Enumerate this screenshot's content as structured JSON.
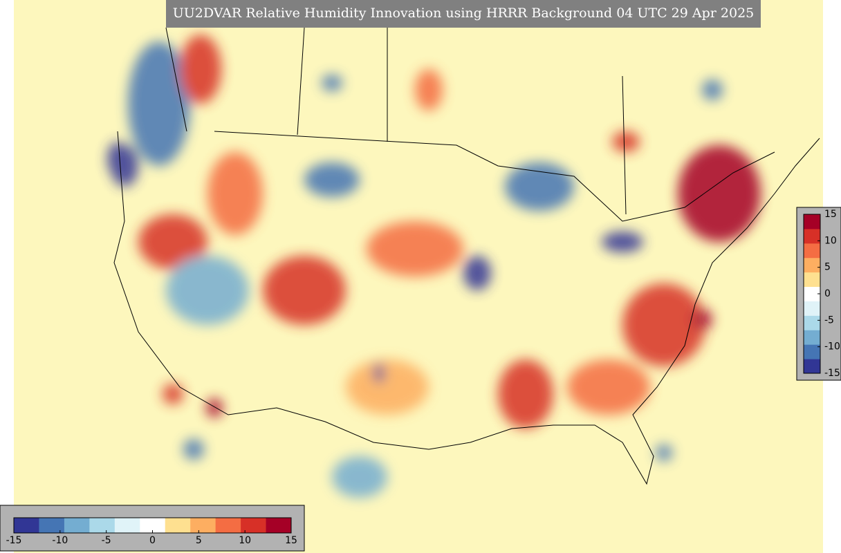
{
  "title": "UU2DVAR Relative Humidity Innovation using HRRR Background 04 UTC 29 Apr 2025",
  "colorbar_horizontal": {
    "range": [
      -15,
      15
    ],
    "ticks": [
      -15,
      -10,
      -5,
      0,
      5,
      10,
      15
    ]
  },
  "colorbar_vertical": {
    "range": [
      -15,
      15
    ],
    "ticks": [
      15,
      10,
      5,
      0,
      -5,
      -10,
      -15
    ]
  },
  "colormap": [
    "#313695",
    "#4575b4",
    "#74add1",
    "#abd9e9",
    "#e0f3f8",
    "#ffffff",
    "#fee090",
    "#fdae61",
    "#f46d43",
    "#d73027",
    "#a50026"
  ]
}
